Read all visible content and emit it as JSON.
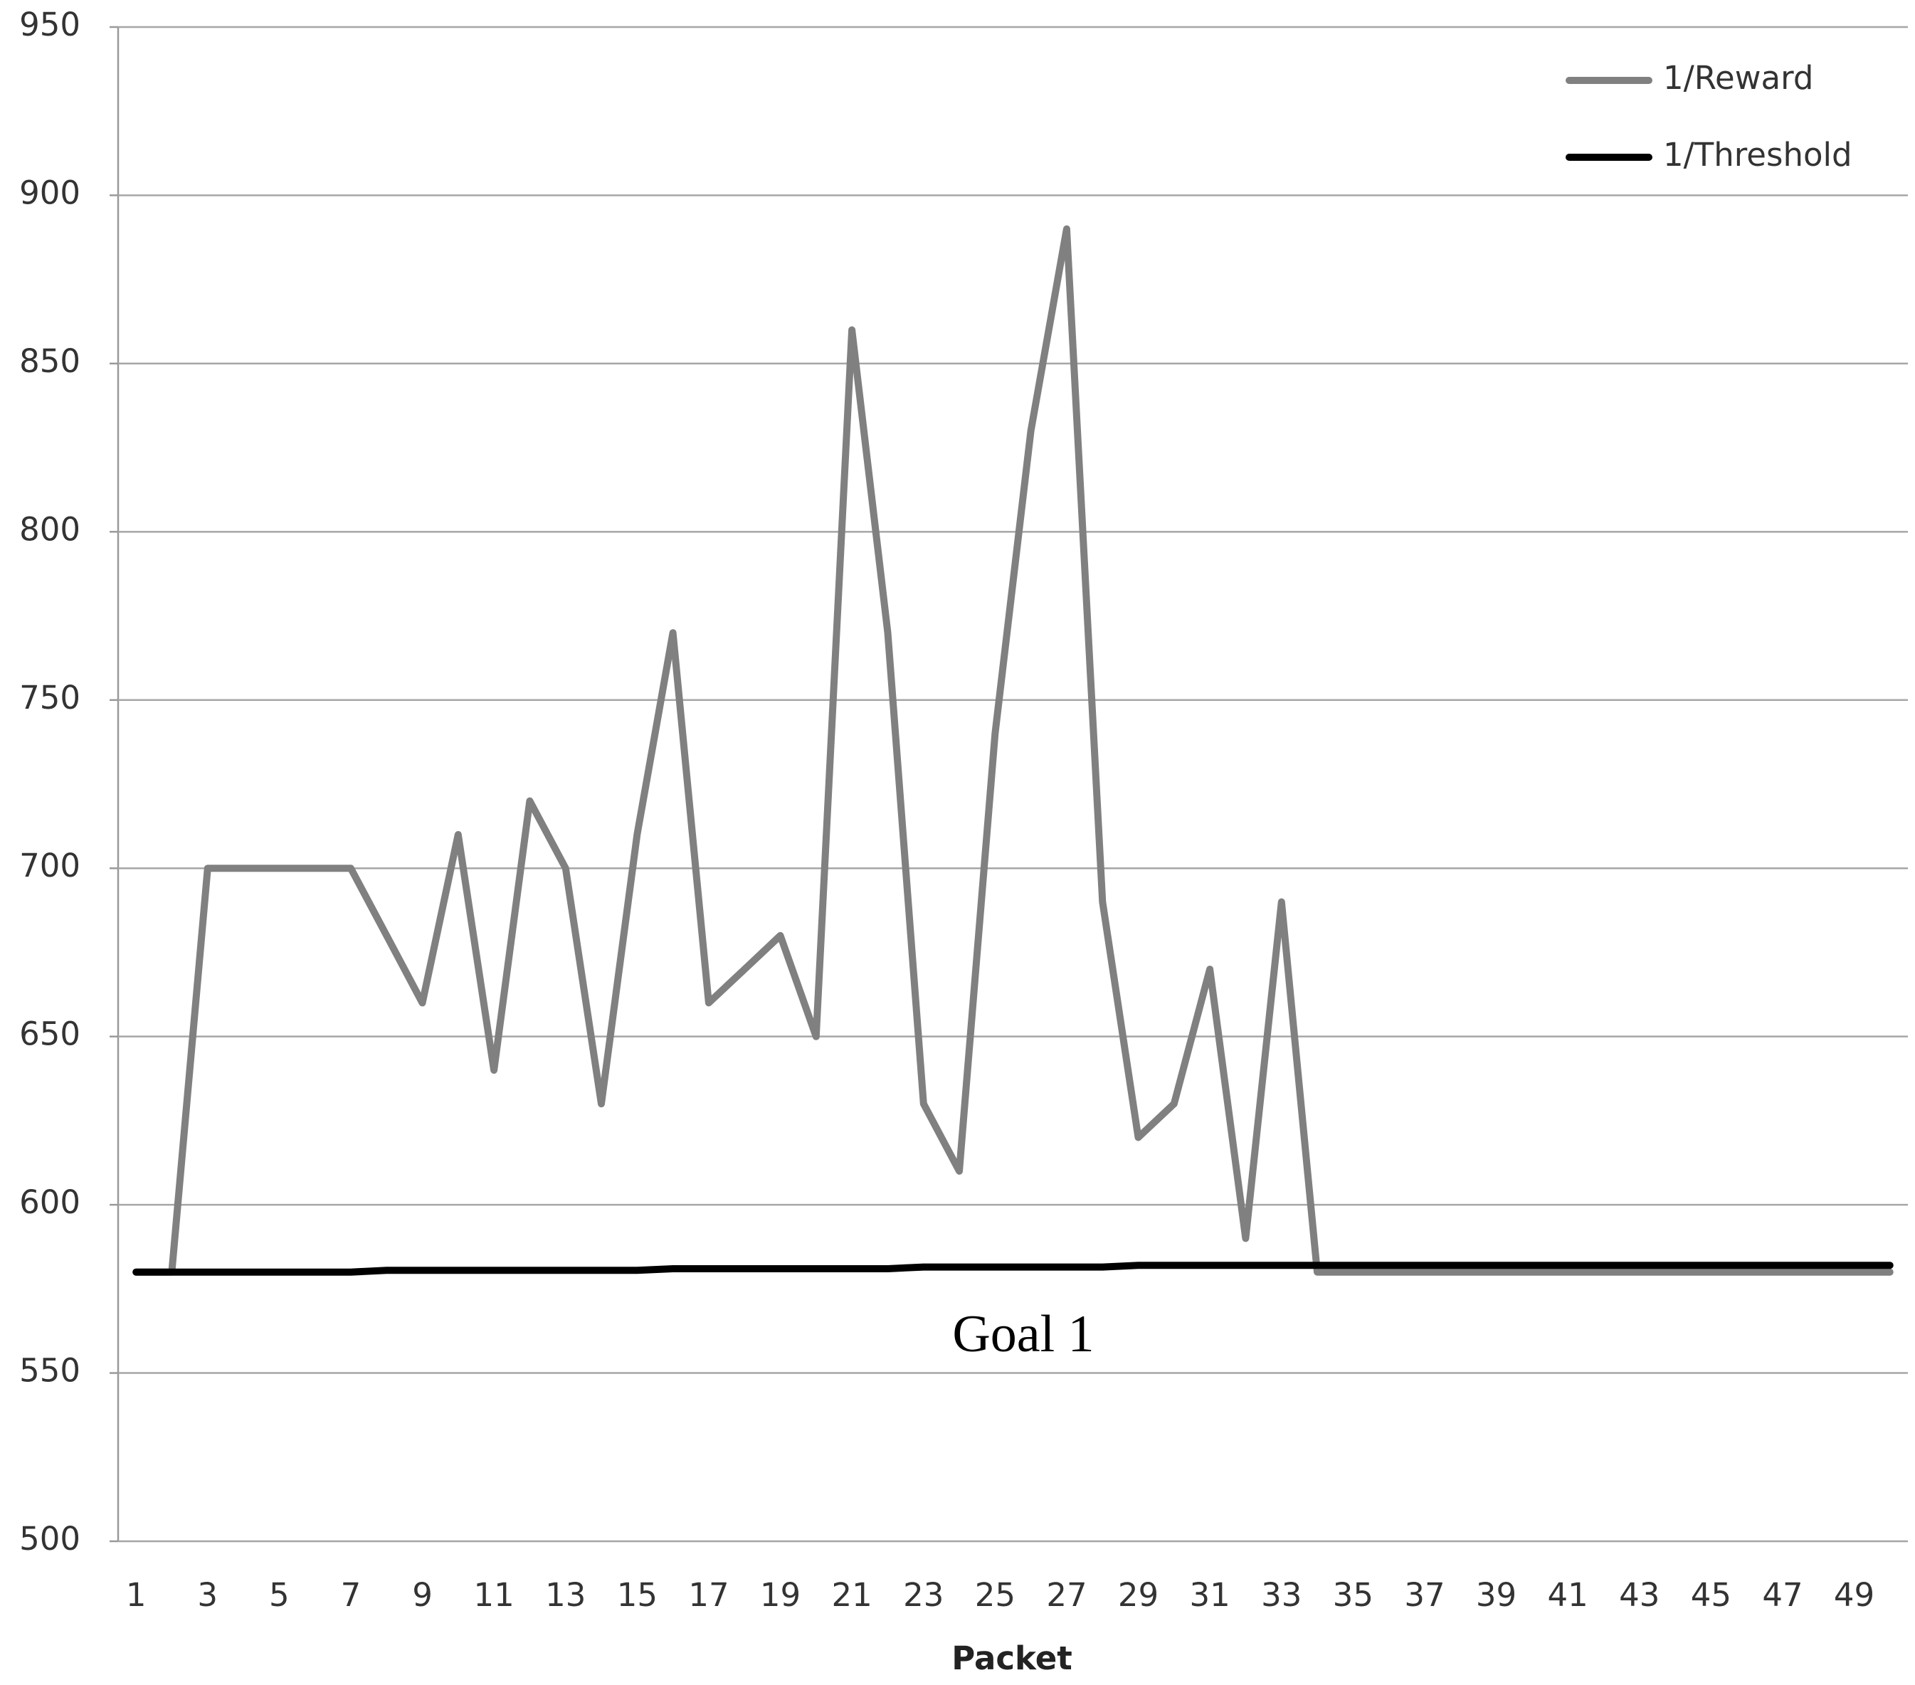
{
  "chart_data": {
    "type": "line",
    "xlabel": "Packet",
    "annotation": "Goal 1",
    "categories": [
      1,
      null,
      3,
      null,
      5,
      null,
      7,
      null,
      9,
      null,
      11,
      null,
      13,
      null,
      15,
      null,
      17,
      null,
      19,
      null,
      21,
      null,
      23,
      null,
      25,
      null,
      27,
      null,
      29,
      null,
      31,
      null,
      33,
      null,
      35,
      null,
      37,
      null,
      39,
      null,
      41,
      null,
      43,
      null,
      45,
      null,
      47,
      null,
      49,
      null
    ],
    "series": [
      {
        "name": "1/Reward",
        "color": "#808080",
        "values": [
          580,
          580,
          700,
          700,
          700,
          700,
          700,
          680,
          660,
          710,
          640,
          720,
          700,
          630,
          710,
          770,
          660,
          670,
          680,
          650,
          860,
          770,
          630,
          610,
          740,
          830,
          890,
          690,
          620,
          630,
          670,
          590,
          690,
          580,
          580,
          580,
          580,
          580,
          580,
          580,
          580,
          580,
          580,
          580,
          580,
          580,
          580,
          580,
          580,
          580
        ]
      },
      {
        "name": "1/Threshold",
        "color": "#000000",
        "values": [
          580,
          580,
          580,
          580,
          580,
          580,
          580,
          580.5,
          580.5,
          580.5,
          580.5,
          580.5,
          580.5,
          580.5,
          580.5,
          581,
          581,
          581,
          581,
          581,
          581,
          581,
          581.5,
          581.5,
          581.5,
          581.5,
          581.5,
          581.5,
          582,
          582,
          582,
          582,
          582,
          582,
          582,
          582,
          582,
          582,
          582,
          582,
          582,
          582,
          582,
          582,
          582,
          582,
          582,
          582,
          582,
          582
        ]
      }
    ],
    "ylim": [
      500,
      950
    ],
    "yticks": [
      500,
      550,
      600,
      650,
      700,
      750,
      800,
      850,
      900,
      950
    ],
    "grid": true,
    "legend": "top-right"
  }
}
